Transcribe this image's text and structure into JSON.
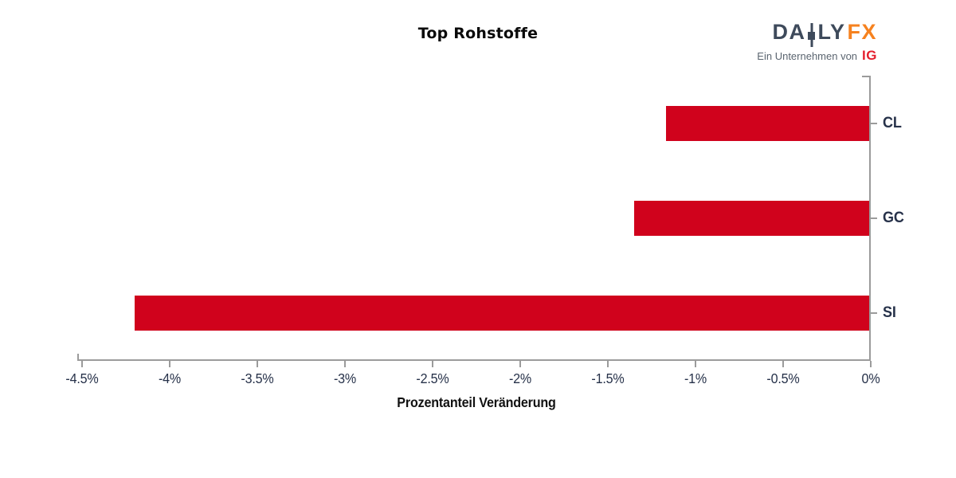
{
  "header": {
    "title": "Top Rohstoffe"
  },
  "logo": {
    "daily_prefix": "DA",
    "daily_suffix": "LY",
    "fx": "FX",
    "tagline": "Ein Unternehmen von",
    "ig": "IG"
  },
  "chart_data": {
    "type": "bar",
    "orientation": "horizontal",
    "title": "Top Rohstoffe",
    "xlabel": "Prozentanteil Veränderung",
    "categories": [
      "CL",
      "GC",
      "SI"
    ],
    "values": [
      -1.17,
      -1.35,
      -4.2
    ],
    "xlim": [
      -4.5,
      0
    ],
    "xticks": [
      -4.5,
      -4,
      -3.5,
      -3,
      -2.5,
      -2,
      -1.5,
      -1,
      -0.5,
      0
    ],
    "xtick_labels": [
      "-4.5%",
      "-4%",
      "-3.5%",
      "-3%",
      "-2.5%",
      "-2%",
      "-1.5%",
      "-1%",
      "-0.5%",
      "0%"
    ],
    "grid": false,
    "legend": false,
    "category_axis_side": "right",
    "value_axis_side": "bottom"
  },
  "colors": {
    "bar": "#d0021c",
    "axis": "#9b9b9b",
    "tick_label": "#27324a",
    "title": "#0a0a0a",
    "xlabel": "#111111",
    "logo_dark": "#3e4a5b",
    "logo_orange": "#f6821f",
    "logo_gray": "#5b6570",
    "logo_red": "#e41e2d"
  }
}
